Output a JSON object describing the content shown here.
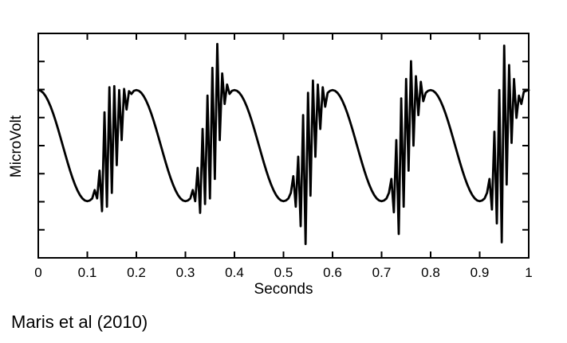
{
  "figure": {
    "xlabel": "Seconds",
    "ylabel": "MicroVolt",
    "caption": "Maris et al (2010)"
  },
  "colors": {
    "line": "#000000",
    "axis": "#000000",
    "text": "#000000",
    "background": "#ffffff"
  },
  "chart_data": {
    "type": "line",
    "title": "",
    "xlabel": "Seconds",
    "ylabel": "MicroVolt",
    "description": "Simulated signal: 5 Hz slow oscillation (period 0.2 s) with a burst of ~100 Hz high-frequency activity on each rising phase; burst amplitudes vary per cycle",
    "xlim": [
      0,
      1
    ],
    "ylim": [
      -2.02,
      2.02
    ],
    "x_ticks": [
      0,
      0.1,
      0.2,
      0.3,
      0.4,
      0.5,
      0.6,
      0.7,
      0.8,
      0.9,
      1
    ],
    "x_tick_labels": [
      "0",
      "0.1",
      "0.2",
      "0.3",
      "0.4",
      "0.5",
      "0.6",
      "0.7",
      "0.8",
      "0.9",
      "1"
    ],
    "y_tick_count": 7,
    "y_tick_labels": [],
    "grid": false,
    "legend": "none",
    "x_start": 0,
    "x_step": 0.005,
    "y": [
      1.0,
      0.988,
      0.951,
      0.891,
      0.809,
      0.707,
      0.588,
      0.454,
      0.309,
      0.156,
      0.0,
      -0.156,
      -0.309,
      -0.454,
      -0.588,
      -0.707,
      -0.809,
      -0.891,
      -0.951,
      -0.988,
      -1.0,
      -0.988,
      -0.951,
      -0.8,
      -0.95,
      -0.45,
      -1.18,
      0.6,
      -1.1,
      1.05,
      -0.85,
      1.07,
      -0.35,
      1.0,
      0.1,
      1.02,
      0.65,
      0.98,
      0.93,
      0.988,
      1.0,
      0.988,
      0.951,
      0.891,
      0.809,
      0.707,
      0.588,
      0.454,
      0.309,
      0.156,
      0.0,
      -0.156,
      -0.309,
      -0.454,
      -0.588,
      -0.707,
      -0.809,
      -0.891,
      -0.951,
      -0.988,
      -1.0,
      -0.988,
      -0.951,
      -0.8,
      -1.0,
      -0.4,
      -1.21,
      0.3,
      -1.05,
      0.9,
      -0.95,
      1.4,
      -0.6,
      1.83,
      0.1,
      1.3,
      0.75,
      1.1,
      0.93,
      0.988,
      1.0,
      0.988,
      0.951,
      0.891,
      0.809,
      0.707,
      0.588,
      0.454,
      0.309,
      0.156,
      0.0,
      -0.156,
      -0.309,
      -0.454,
      -0.588,
      -0.707,
      -0.809,
      -0.891,
      -0.951,
      -0.988,
      -1.0,
      -0.988,
      -0.951,
      -0.85,
      -0.55,
      -1.1,
      -0.2,
      -1.45,
      0.55,
      -1.77,
      0.95,
      -0.9,
      1.17,
      -0.2,
      1.1,
      0.3,
      1.05,
      0.7,
      0.95,
      0.988,
      1.0,
      0.988,
      0.951,
      0.891,
      0.809,
      0.707,
      0.588,
      0.454,
      0.309,
      0.156,
      0.0,
      -0.156,
      -0.309,
      -0.454,
      -0.588,
      -0.707,
      -0.809,
      -0.891,
      -0.951,
      -0.988,
      -1.0,
      -0.988,
      -0.951,
      -0.85,
      -0.6,
      -1.2,
      0.1,
      -1.59,
      0.85,
      -1.1,
      1.2,
      -0.45,
      1.52,
      0.0,
      1.25,
      0.55,
      1.15,
      0.8,
      0.95,
      0.988,
      1.0,
      0.988,
      0.951,
      0.891,
      0.809,
      0.707,
      0.588,
      0.454,
      0.309,
      0.156,
      0.0,
      -0.156,
      -0.309,
      -0.454,
      -0.588,
      -0.707,
      -0.809,
      -0.891,
      -0.951,
      -0.988,
      -1.0,
      -0.988,
      -0.951,
      -0.85,
      -0.6,
      -1.15,
      0.25,
      -1.4,
      1.0,
      -1.74,
      1.8,
      -0.7,
      1.45,
      0.05,
      1.2,
      0.5,
      0.9,
      0.75,
      0.97,
      0.988,
      1.0
    ]
  }
}
